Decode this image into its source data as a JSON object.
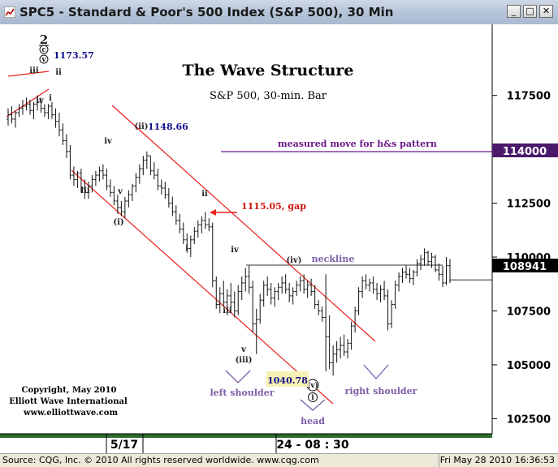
{
  "window": {
    "title": "SPC5 - Standard & Poor's 500 Index (S&P 500), 30 Min",
    "buttons": {
      "minimize": "_",
      "maximize": "□",
      "close": "✕"
    }
  },
  "status": {
    "left": "Source: CQG, Inc. © 2010 All rights reserved worldwide. www.cqg.com",
    "right": "Fri May 28 2010 16:36:53"
  },
  "colors": {
    "channel": "#e8201c",
    "measured_move": "#6b1a8a",
    "neckline": "#333333",
    "shoulder_label": "#7b5ea7",
    "price_box": "#f7f1b4",
    "annotation_blue": "#10108a",
    "gap_label": "#d0140a"
  },
  "chart_data": {
    "type": "candlestick",
    "title": "The Wave Structure",
    "subtitle": "S&P 500, 30-min. Bar",
    "yticks": [
      102500,
      105000,
      107500,
      110000,
      112500,
      115000,
      117500
    ],
    "ylim": [
      101800,
      120800
    ],
    "xticks": [
      "5/17",
      "24 - 08 : 30"
    ],
    "last_price": "108941",
    "last_value": 108941,
    "ohlc": [
      [
        116400,
        116900,
        116100,
        116600
      ],
      [
        116600,
        117000,
        116200,
        116400
      ],
      [
        116400,
        116800,
        116000,
        116700
      ],
      [
        116700,
        117100,
        116500,
        116900
      ],
      [
        116900,
        117300,
        116600,
        117000
      ],
      [
        117000,
        117400,
        116800,
        117100
      ],
      [
        117100,
        117300,
        116600,
        116800
      ],
      [
        116800,
        117200,
        116400,
        117100
      ],
      [
        117100,
        117500,
        116800,
        117200
      ],
      [
        117200,
        117400,
        116700,
        116900
      ],
      [
        116900,
        117100,
        116500,
        116700
      ],
      [
        116700,
        117100,
        116400,
        117000
      ],
      [
        117000,
        117200,
        116400,
        116600
      ],
      [
        116600,
        116900,
        116000,
        116300
      ],
      [
        116300,
        116700,
        115600,
        115900
      ],
      [
        115900,
        116200,
        115200,
        115400
      ],
      [
        115400,
        115700,
        114600,
        114900
      ],
      [
        114900,
        115200,
        113600,
        113800
      ],
      [
        113800,
        114200,
        113300,
        113600
      ],
      [
        113600,
        114000,
        113200,
        113900
      ],
      [
        113900,
        114100,
        113000,
        113200
      ],
      [
        113200,
        113600,
        112700,
        113000
      ],
      [
        113000,
        113500,
        112700,
        113300
      ],
      [
        113300,
        113800,
        113000,
        113600
      ],
      [
        113600,
        114000,
        113300,
        113800
      ],
      [
        113800,
        114200,
        113500,
        114000
      ],
      [
        114000,
        114300,
        113600,
        113800
      ],
      [
        113800,
        114100,
        113100,
        113300
      ],
      [
        113300,
        113600,
        112800,
        113000
      ],
      [
        113000,
        113300,
        112400,
        112600
      ],
      [
        112600,
        112900,
        112000,
        112300
      ],
      [
        112300,
        112600,
        111900,
        112100
      ],
      [
        112100,
        112800,
        111800,
        112600
      ],
      [
        112600,
        113100,
        112300,
        112900
      ],
      [
        112900,
        113400,
        112600,
        113300
      ],
      [
        113300,
        113900,
        113000,
        113700
      ],
      [
        113700,
        114300,
        113400,
        114100
      ],
      [
        114100,
        114700,
        113800,
        114500
      ],
      [
        114500,
        114900,
        114100,
        114700
      ],
      [
        114700,
        114700,
        113800,
        114000
      ],
      [
        114000,
        114400,
        113600,
        113800
      ],
      [
        113800,
        114100,
        113100,
        113300
      ],
      [
        113300,
        113600,
        112900,
        113200
      ],
      [
        113200,
        113500,
        112700,
        112900
      ],
      [
        112900,
        113200,
        112300,
        112500
      ],
      [
        112500,
        112800,
        111900,
        112100
      ],
      [
        112100,
        112400,
        111500,
        111700
      ],
      [
        111700,
        112000,
        111100,
        111300
      ],
      [
        111300,
        111600,
        110600,
        110800
      ],
      [
        110800,
        111100,
        110200,
        110400
      ],
      [
        110400,
        111000,
        110000,
        110800
      ],
      [
        110800,
        111400,
        110600,
        111200
      ],
      [
        111200,
        111700,
        110900,
        111500
      ],
      [
        111500,
        111900,
        111100,
        111700
      ],
      [
        111700,
        112100,
        111300,
        111500
      ],
      [
        111500,
        111800,
        111200,
        111400
      ],
      [
        111400,
        111600,
        108600,
        108900
      ],
      [
        108900,
        109100,
        107600,
        107800
      ],
      [
        107800,
        108600,
        107400,
        108300
      ],
      [
        108300,
        108900,
        107700,
        107900
      ],
      [
        107900,
        108500,
        107300,
        108200
      ],
      [
        108200,
        108800,
        107600,
        107900
      ],
      [
        107900,
        108400,
        107200,
        107500
      ],
      [
        107500,
        108700,
        107300,
        108400
      ],
      [
        108400,
        109100,
        108000,
        108800
      ],
      [
        108800,
        109500,
        108400,
        109100
      ],
      [
        109100,
        109600,
        108300,
        108600
      ],
      [
        108600,
        108900,
        106500,
        106900
      ],
      [
        106900,
        107600,
        105500,
        107100
      ],
      [
        107100,
        108300,
        106900,
        108000
      ],
      [
        108000,
        108900,
        107700,
        108700
      ],
      [
        108700,
        109100,
        108200,
        108500
      ],
      [
        108500,
        108800,
        107800,
        108100
      ],
      [
        108100,
        108600,
        107700,
        108400
      ],
      [
        108400,
        108800,
        108000,
        108600
      ],
      [
        108600,
        109100,
        108300,
        108800
      ],
      [
        108800,
        109200,
        108300,
        108500
      ],
      [
        108500,
        108800,
        107900,
        108200
      ],
      [
        108200,
        108600,
        107800,
        108400
      ],
      [
        108400,
        108900,
        108200,
        108700
      ],
      [
        108700,
        109100,
        108400,
        108900
      ],
      [
        108900,
        109200,
        108300,
        108500
      ],
      [
        108500,
        108900,
        108100,
        108700
      ],
      [
        108700,
        109000,
        108200,
        108400
      ],
      [
        108400,
        108700,
        107600,
        107800
      ],
      [
        107800,
        108000,
        107300,
        107500
      ],
      [
        107500,
        107700,
        107000,
        107200
      ],
      [
        107200,
        109200,
        104700,
        106300
      ],
      [
        106300,
        107300,
        104800,
        105100
      ],
      [
        105100,
        105900,
        104500,
        105500
      ],
      [
        105500,
        106100,
        105100,
        105700
      ],
      [
        105700,
        106300,
        105300,
        105900
      ],
      [
        105900,
        106400,
        105400,
        105600
      ],
      [
        105600,
        106200,
        105300,
        106000
      ],
      [
        106000,
        107000,
        105700,
        106800
      ],
      [
        106800,
        107700,
        106500,
        107500
      ],
      [
        107500,
        108600,
        107300,
        108400
      ],
      [
        108400,
        109100,
        108100,
        108900
      ],
      [
        108900,
        109200,
        108500,
        108700
      ],
      [
        108700,
        109000,
        108400,
        108800
      ],
      [
        108800,
        109100,
        108300,
        108500
      ],
      [
        108500,
        108800,
        108000,
        108300
      ],
      [
        108300,
        108700,
        107900,
        108500
      ],
      [
        108500,
        108900,
        108000,
        108200
      ],
      [
        108200,
        108500,
        106600,
        106900
      ],
      [
        106900,
        108000,
        106700,
        107800
      ],
      [
        107800,
        108900,
        107600,
        108700
      ],
      [
        108700,
        109300,
        108400,
        109100
      ],
      [
        109100,
        109500,
        108800,
        109300
      ],
      [
        109300,
        109600,
        109000,
        109200
      ],
      [
        109200,
        109500,
        108800,
        109000
      ],
      [
        109000,
        109400,
        108700,
        109300
      ],
      [
        109300,
        109900,
        109100,
        109700
      ],
      [
        109700,
        110100,
        109400,
        109900
      ],
      [
        109900,
        110400,
        109600,
        110200
      ],
      [
        110200,
        110300,
        109600,
        109800
      ],
      [
        109800,
        110200,
        109500,
        110000
      ],
      [
        110000,
        110100,
        109300,
        109400
      ],
      [
        109400,
        109700,
        108900,
        109200
      ],
      [
        109200,
        109600,
        108600,
        108800
      ],
      [
        108800,
        110000,
        108700,
        109600
      ],
      [
        109600,
        109900,
        108800,
        108941
      ]
    ],
    "channel_upper": [
      [
        115000,
        121000
      ],
      [
        111000,
        104000
      ]
    ],
    "channel_lower": [
      [
        115500,
        113300
      ],
      [
        109000,
        102900
      ]
    ],
    "neckline": 109000,
    "measured_move_level": 114000,
    "measured_move_label": "measured move for h&s pattern",
    "measured_move_value": "114000",
    "gap_label": "1115.05, gap",
    "annotations": {
      "wave_2": "2",
      "label_c": "c",
      "label_v_top": "v",
      "label_iii_top": "iii",
      "label_ii_top": "ii",
      "label_iv_top": "iv",
      "label_i_top": "i",
      "price_1173": "1173.57",
      "label_iii_a": "iii",
      "label_iv_a": "iv",
      "label_v_a": "v",
      "label_i_paren": "(i)",
      "label_ii_paren": "(ii)",
      "price_1148": "1148.66",
      "label_ii_b": "ii",
      "label_i_b": "i",
      "label_iv_b": "iv",
      "label_iii_b": "iii",
      "label_v_b": "v",
      "label_iii_paren": "(iii)",
      "label_iv_paren": "(iv)",
      "label_v_paren": "(v)",
      "label_i_circle": "i",
      "price_1040": "1040.78",
      "neckline_label": "neckline",
      "left_shoulder": "left shoulder",
      "head": "head",
      "right_shoulder": "right shoulder"
    },
    "copyright": [
      "Copyright, May 2010",
      "Elliott Wave International",
      "www.elliottwave.com"
    ]
  }
}
